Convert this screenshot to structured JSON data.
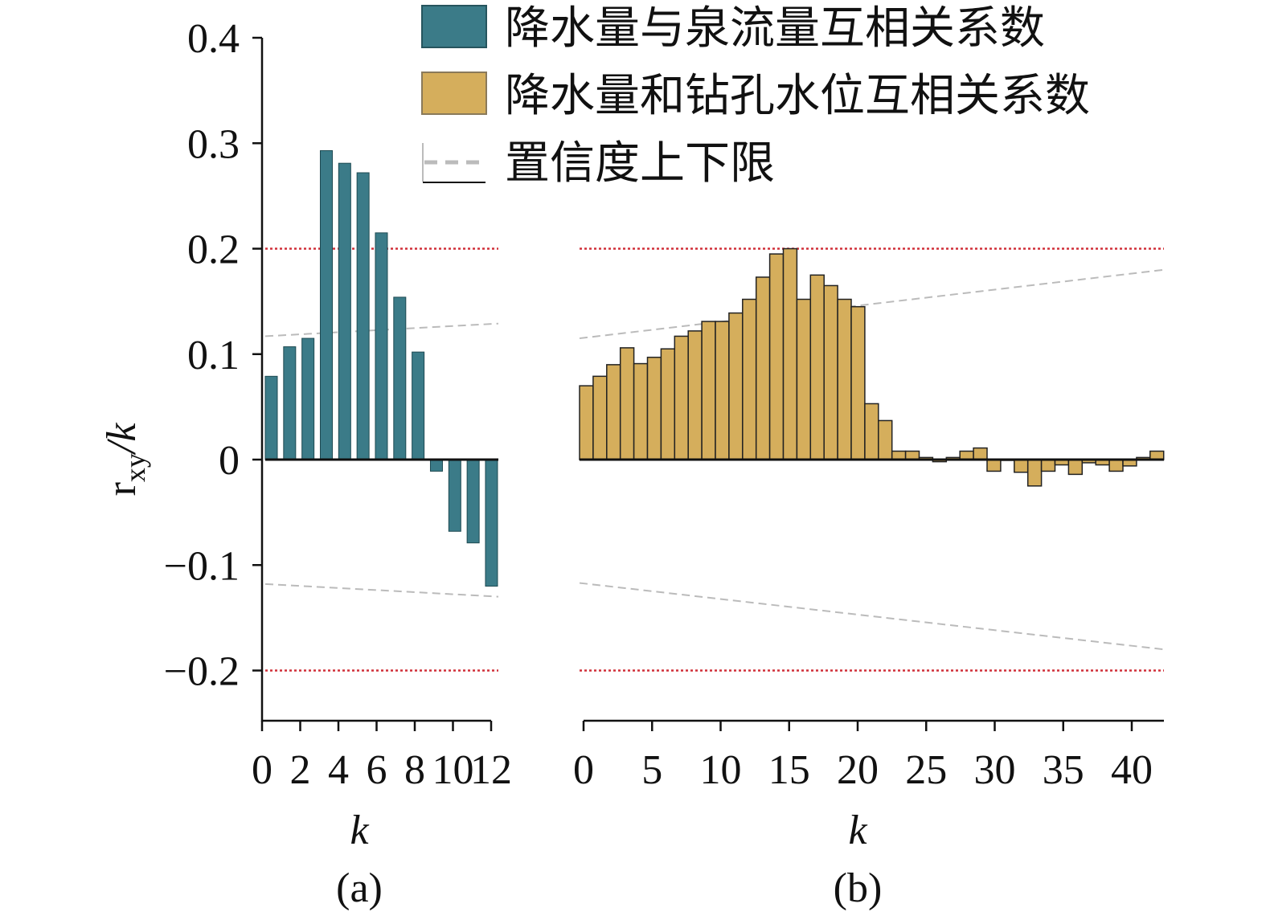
{
  "chart_data": [
    {
      "type": "bar",
      "panel_label": "(a)",
      "xlabel": "k",
      "ylabel_main": "r",
      "ylabel_sub": "xy",
      "ylabel_tail": "/k",
      "ylim": [
        -0.25,
        0.4
      ],
      "yticks": [
        0.4,
        0.3,
        0.2,
        0.1,
        0,
        -0.1,
        -0.2
      ],
      "ytick_labels": [
        "0.4",
        "0.3",
        "0.2",
        "0.1",
        "0",
        "−0.1",
        "−0.2"
      ],
      "xticks": [
        0,
        2,
        4,
        6,
        8,
        10,
        12
      ],
      "xtick_labels": [
        "0",
        "2",
        "4",
        "6",
        "8",
        "10",
        "12"
      ],
      "series": [
        {
          "name": "降水量与泉流量互相关系数",
          "color": "#3b7b88",
          "values": [
            0.079,
            0.107,
            0.115,
            0.293,
            0.281,
            0.272,
            0.215,
            0.154,
            0.102,
            -0.011,
            -0.068,
            -0.079,
            -0.12
          ]
        }
      ],
      "confidence_upper": [
        0.117,
        0.129
      ],
      "confidence_lower": [
        -0.118,
        -0.13
      ],
      "threshold_lines": [
        0.2,
        -0.2
      ]
    },
    {
      "type": "bar",
      "panel_label": "(b)",
      "xlabel": "k",
      "xticks": [
        0,
        5,
        10,
        15,
        20,
        25,
        30,
        35,
        40
      ],
      "xtick_labels": [
        "0",
        "5",
        "10",
        "15",
        "20",
        "25",
        "30",
        "35",
        "40"
      ],
      "series": [
        {
          "name": "降水量和钻孔水位互相关系数",
          "color": "#d5ae5c",
          "values": [
            0.07,
            0.079,
            0.09,
            0.106,
            0.091,
            0.097,
            0.105,
            0.117,
            0.122,
            0.131,
            0.131,
            0.139,
            0.152,
            0.173,
            0.195,
            0.2,
            0.152,
            0.175,
            0.165,
            0.152,
            0.145,
            0.053,
            0.037,
            0.008,
            0.008,
            0.002,
            -0.002,
            0.002,
            0.008,
            0.011,
            -0.011,
            0.0,
            -0.012,
            -0.025,
            -0.011,
            -0.005,
            -0.014,
            -0.003,
            -0.005,
            -0.011,
            -0.006,
            0.002,
            0.008
          ]
        }
      ],
      "confidence_upper": [
        0.115,
        0.18
      ],
      "confidence_lower": [
        -0.117,
        -0.18
      ],
      "threshold_lines": [
        0.2,
        -0.2
      ]
    }
  ],
  "legend": {
    "placement": "top-right",
    "items": [
      "降水量与泉流量互相关系数",
      "降水量和钻孔水位互相关系数",
      "置信度上下限"
    ]
  }
}
